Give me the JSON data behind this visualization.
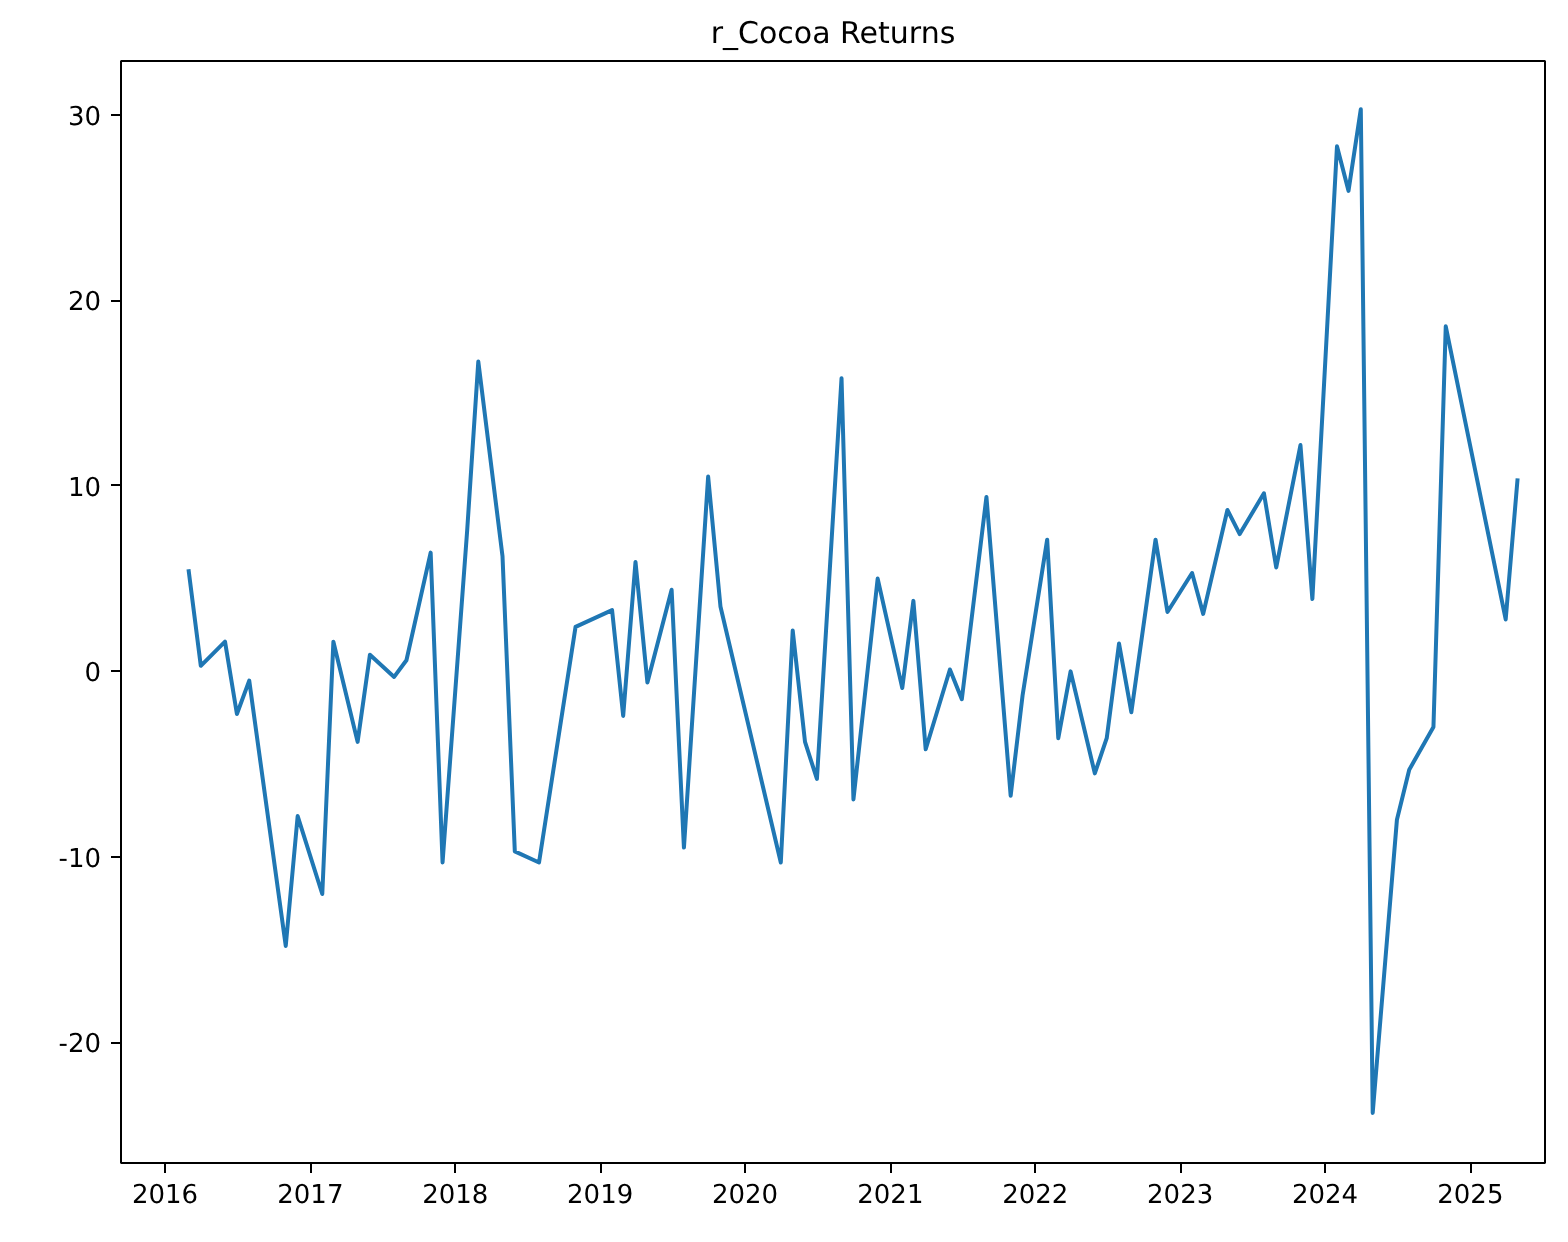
{
  "chart_data": {
    "type": "line",
    "title": "r_Cocoa Returns",
    "x": [
      "2016-02-29",
      "2016-03-31",
      "2016-05-31",
      "2016-06-30",
      "2016-07-31",
      "2016-10-31",
      "2016-11-30",
      "2017-01-31",
      "2017-02-28",
      "2017-04-30",
      "2017-05-31",
      "2017-07-31",
      "2017-08-31",
      "2017-10-31",
      "2017-11-30",
      "2018-01-31",
      "2018-02-28",
      "2018-04-30",
      "2018-05-31",
      "2018-07-31",
      "2018-10-31",
      "2019-01-31",
      "2019-02-28",
      "2019-03-31",
      "2019-04-30",
      "2019-06-30",
      "2019-07-31",
      "2019-09-30",
      "2019-10-31",
      "2020-03-31",
      "2020-04-30",
      "2020-05-31",
      "2020-06-30",
      "2020-08-31",
      "2020-09-30",
      "2020-11-30",
      "2021-01-31",
      "2021-02-28",
      "2021-03-31",
      "2021-05-31",
      "2021-06-30",
      "2021-08-31",
      "2021-10-31",
      "2021-11-30",
      "2022-01-31",
      "2022-02-28",
      "2022-03-31",
      "2022-05-31",
      "2022-06-30",
      "2022-07-31",
      "2022-08-31",
      "2022-10-31",
      "2022-11-30",
      "2023-01-31",
      "2023-02-28",
      "2023-04-30",
      "2023-05-31",
      "2023-07-31",
      "2023-08-31",
      "2023-10-31",
      "2023-11-30",
      "2024-01-31",
      "2024-02-29",
      "2024-03-31",
      "2024-04-30",
      "2024-06-30",
      "2024-07-31",
      "2024-09-30",
      "2024-10-31",
      "2025-03-31",
      "2025-04-30"
    ],
    "series": [
      {
        "color": "#1f77b4",
        "values": [
          5.5,
          0.3,
          1.6,
          -2.3,
          -0.5,
          -14.8,
          -7.8,
          -12.0,
          1.6,
          -3.8,
          0.9,
          -0.3,
          0.6,
          6.4,
          -10.3,
          7.6,
          16.7,
          6.2,
          -9.7,
          -10.3,
          2.4,
          3.3,
          -2.4,
          5.9,
          -0.6,
          4.4,
          -9.5,
          10.5,
          3.5,
          -10.3,
          2.2,
          -3.8,
          -5.8,
          15.8,
          -6.9,
          5.0,
          -0.9,
          3.8,
          -4.2,
          0.1,
          -1.5,
          9.4,
          -6.7,
          -1.3,
          7.1,
          -3.6,
          0.0,
          -5.5,
          -3.6,
          1.5,
          -2.2,
          7.1,
          3.2,
          5.3,
          3.1,
          8.7,
          7.4,
          9.6,
          5.6,
          12.2,
          3.9,
          28.3,
          25.9,
          30.3,
          -23.8,
          -8.0,
          -5.3,
          -3.0,
          18.6,
          2.8,
          10.4
        ]
      }
    ],
    "xlim": [
      "2015-09-12",
      "2025-07-08"
    ],
    "ylim": [
      -26.5,
      32.9
    ],
    "xticks": [
      "2016",
      "2017",
      "2018",
      "2019",
      "2020",
      "2021",
      "2022",
      "2023",
      "2024",
      "2025"
    ],
    "yticks": [
      -20,
      -10,
      0,
      10,
      20,
      30
    ],
    "grid": false,
    "marker": "none",
    "line_style": "solid"
  }
}
